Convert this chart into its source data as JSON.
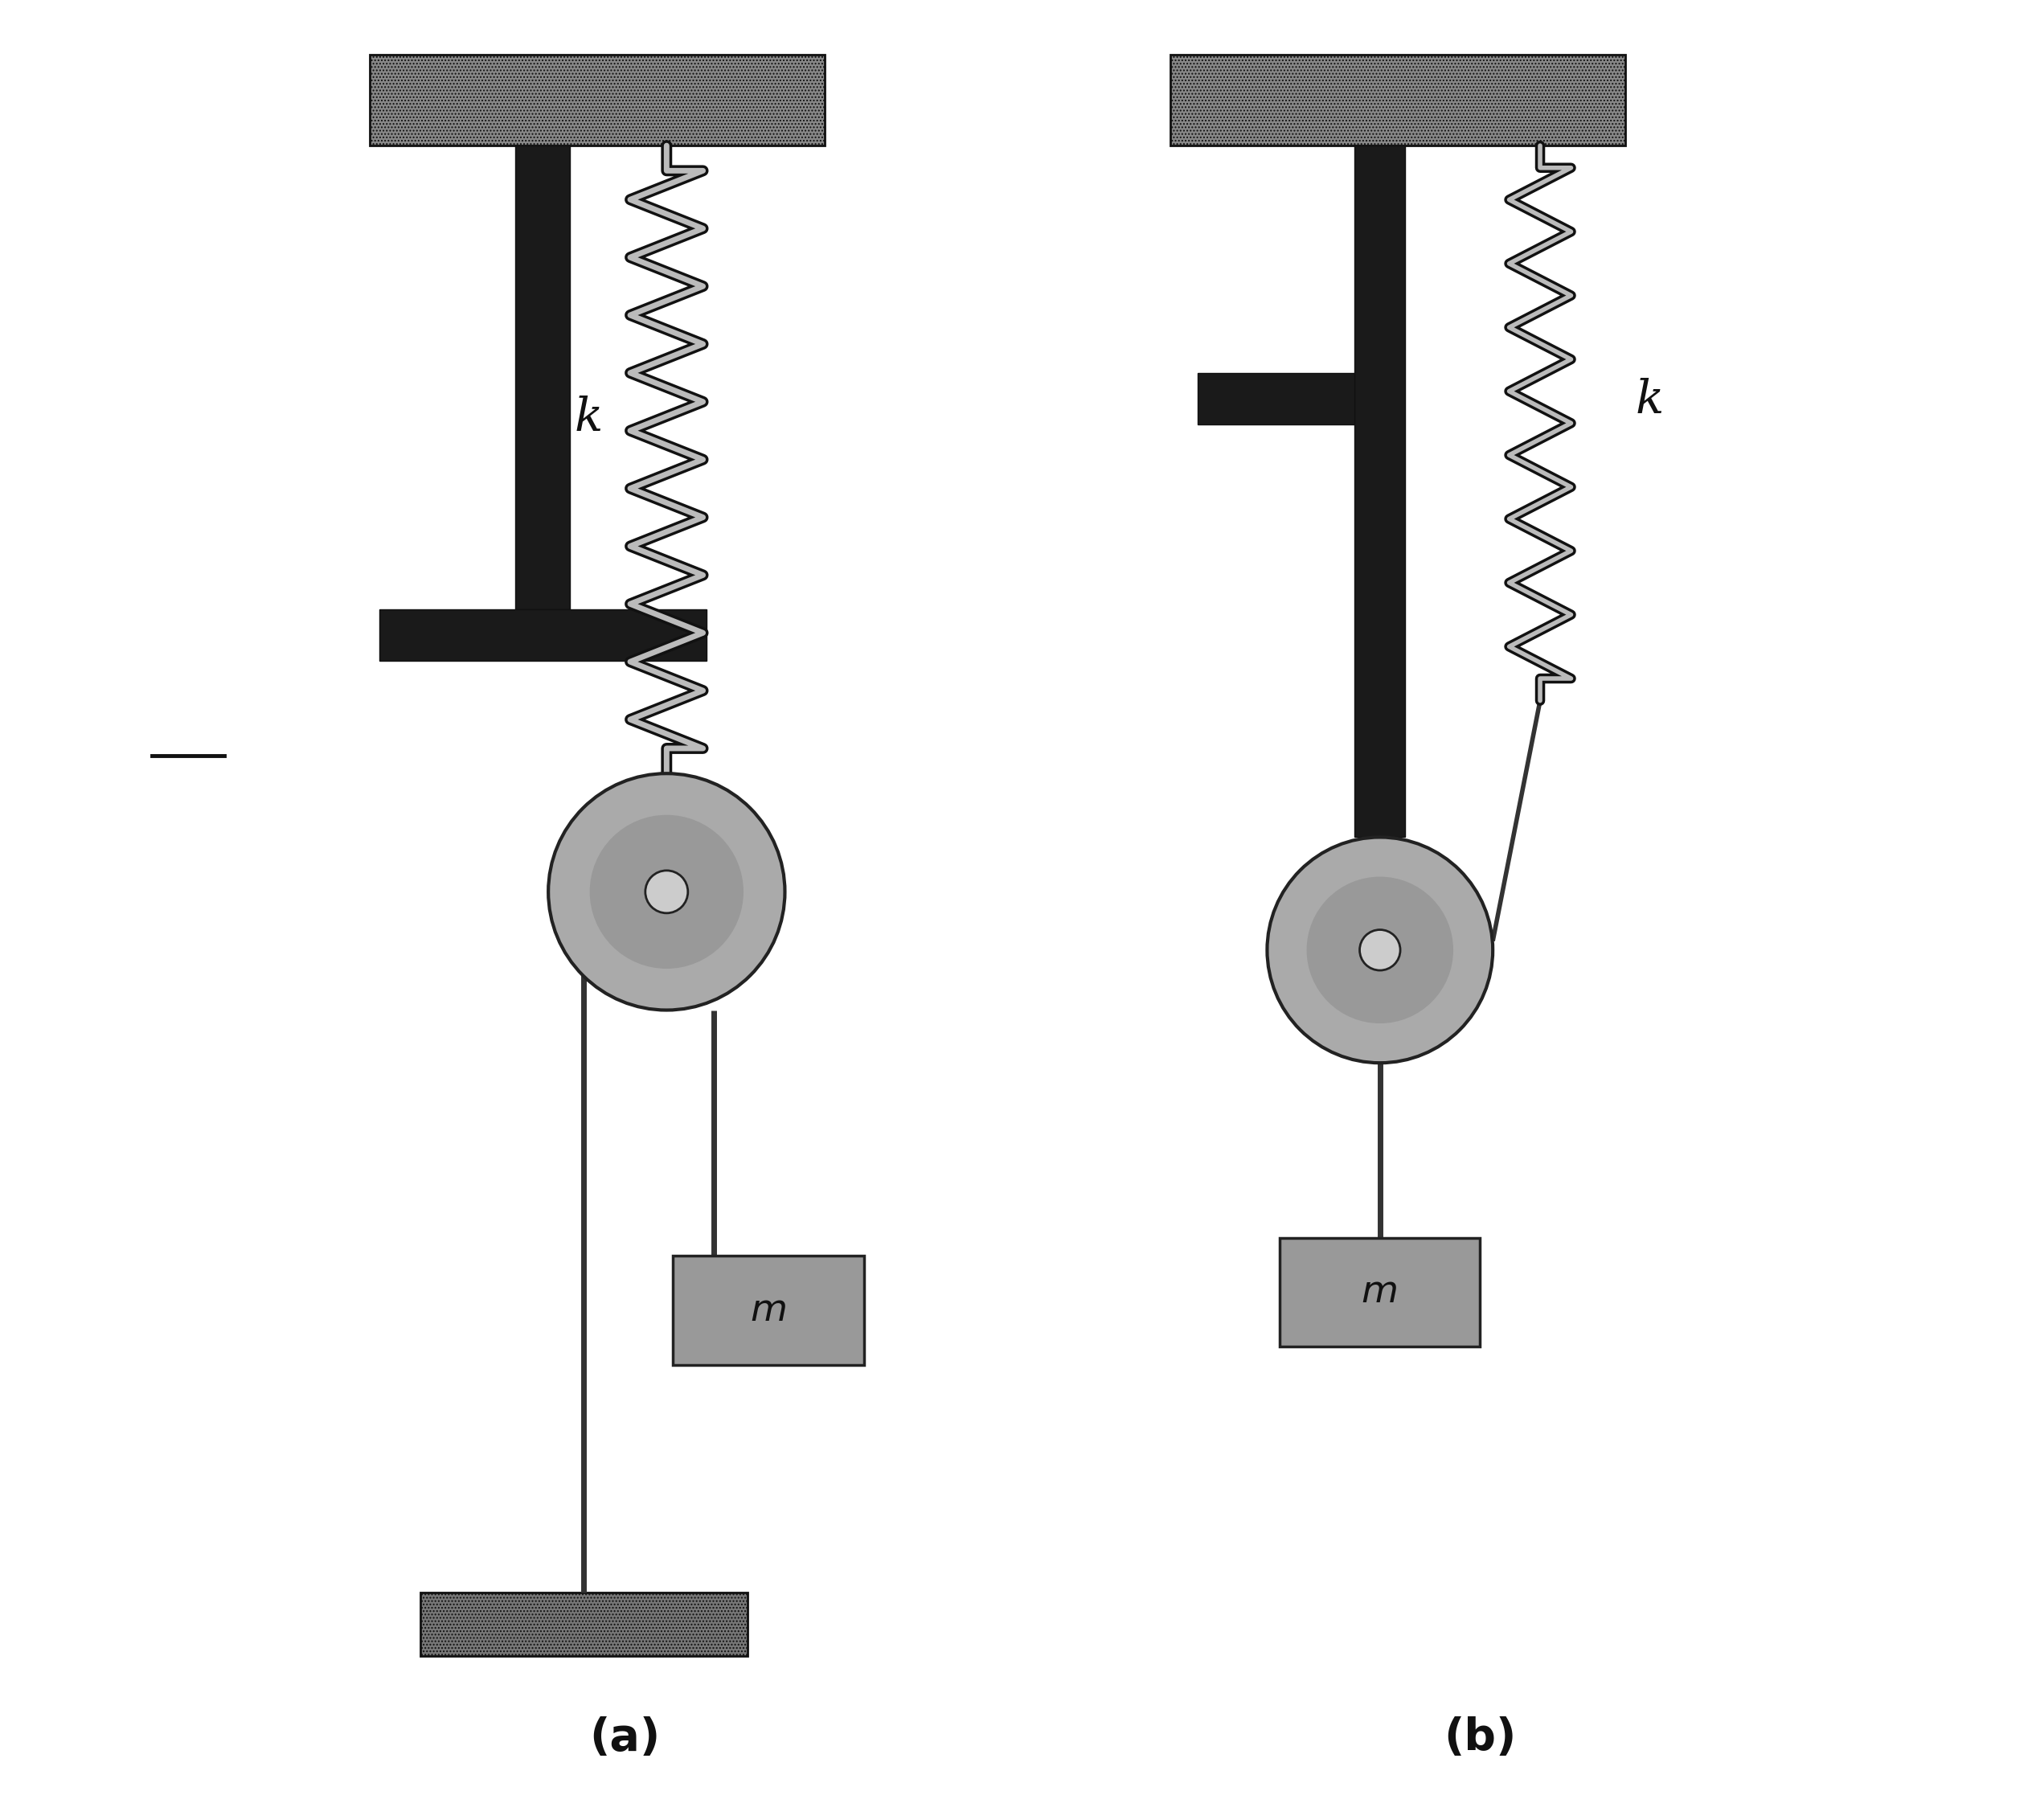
{
  "bg_color": "#ffffff",
  "ceiling_color": "#888888",
  "bracket_color": "#333333",
  "spring_outer_color": "#222222",
  "spring_inner_color": "#aaaaaa",
  "pulley_color": "#aaaaaa",
  "rope_color": "#444444",
  "mass_color": "#999999",
  "floor_color": "#777777",
  "label_k_a": "k",
  "label_k_b": "k",
  "label_m_a": "m",
  "label_m_b": "m",
  "label_a": "(a)",
  "label_b": "(b)",
  "fig_width": 25.28,
  "fig_height": 22.64
}
